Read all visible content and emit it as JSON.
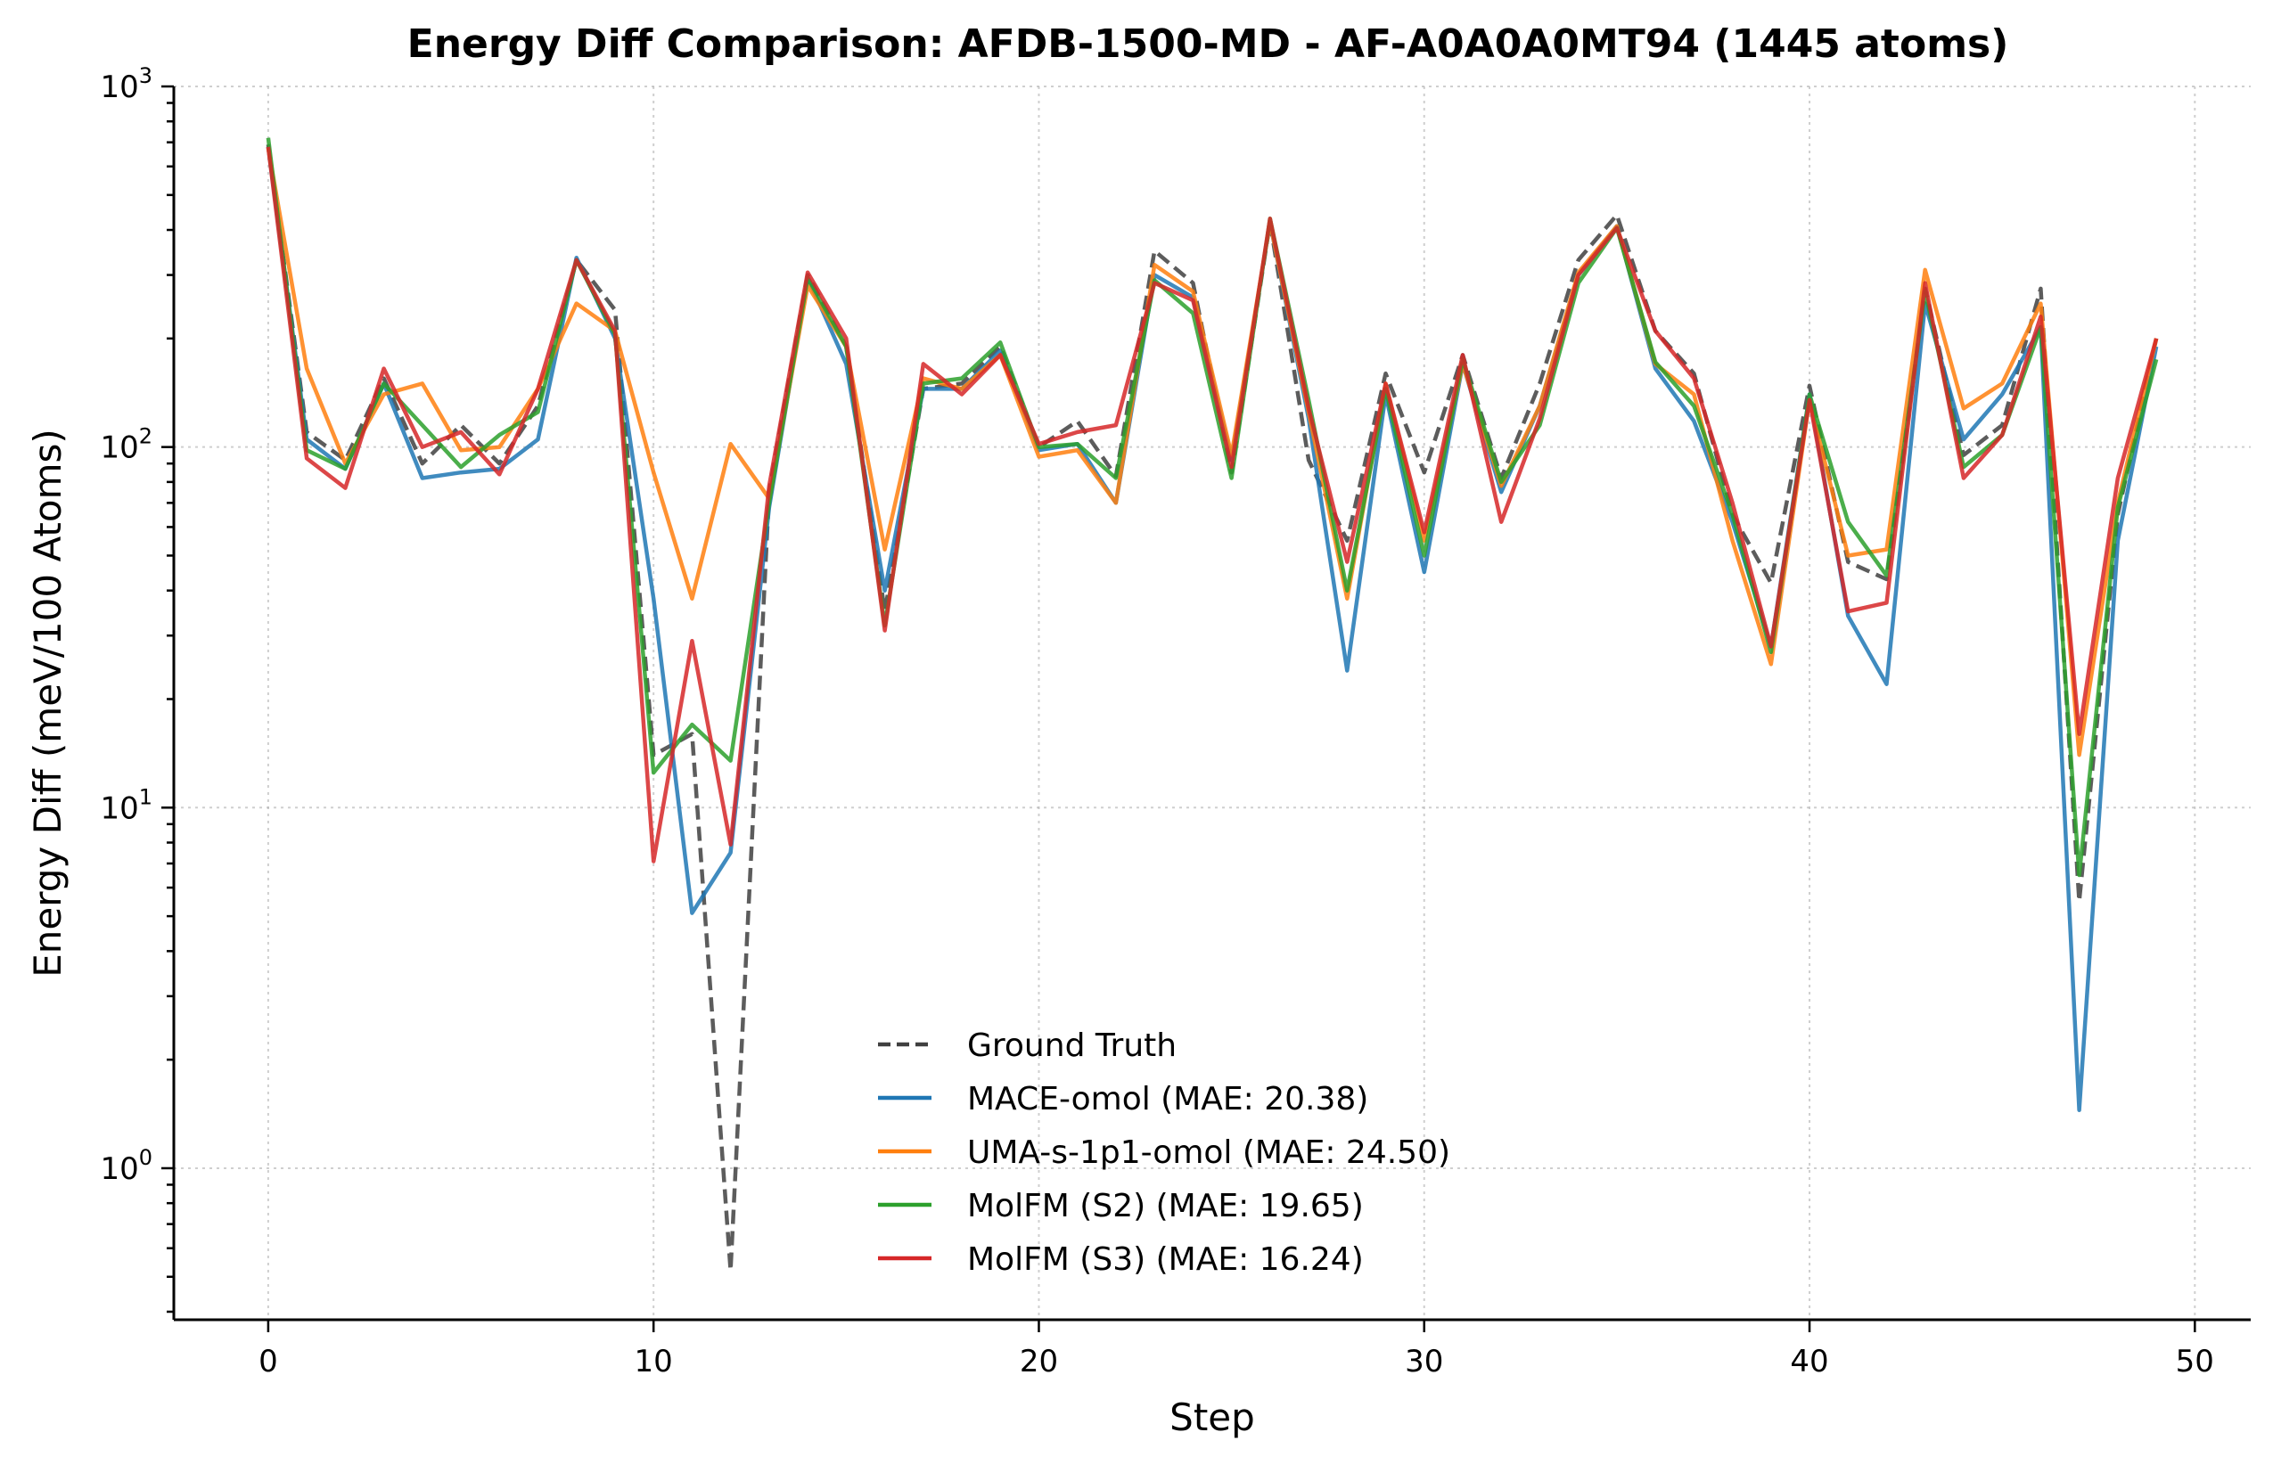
{
  "chart_data": {
    "type": "line",
    "title": "Energy Diff Comparison: AFDB-1500-MD - AF-A0A0A0MT94 (1445 atoms)",
    "xlabel": "Step",
    "ylabel": "Energy Diff (meV/100 Atoms)",
    "yscale": "log",
    "xlim": [
      -2.45,
      51.45
    ],
    "ylim": [
      0.38,
      1000
    ],
    "xticks": [
      0,
      10,
      20,
      30,
      40,
      50
    ],
    "xtick_labels": [
      "0",
      "10",
      "20",
      "30",
      "40",
      "50"
    ],
    "yticks": [
      1,
      10,
      100,
      1000
    ],
    "ytick_base": "10",
    "ytick_exponents": [
      "0",
      "1",
      "2",
      "3"
    ],
    "grid": true,
    "legend_position": "lower-center",
    "x": [
      0,
      1,
      2,
      3,
      4,
      5,
      6,
      7,
      8,
      9,
      10,
      11,
      12,
      13,
      14,
      15,
      16,
      17,
      18,
      19,
      20,
      21,
      22,
      23,
      24,
      25,
      26,
      27,
      28,
      29,
      30,
      31,
      32,
      33,
      34,
      35,
      36,
      37,
      38,
      39,
      40,
      41,
      42,
      43,
      44,
      45,
      46,
      47,
      48,
      49
    ],
    "series": [
      {
        "name": "Ground Truth",
        "color": "#404040",
        "dashed": true,
        "values": [
          690,
          110,
          92,
          155,
          90,
          115,
          90,
          130,
          330,
          240,
          14,
          16,
          0.52,
          75,
          300,
          190,
          35,
          145,
          150,
          190,
          100,
          118,
          83,
          350,
          285,
          85,
          420,
          92,
          55,
          160,
          85,
          180,
          82,
          150,
          330,
          440,
          210,
          160,
          65,
          42,
          148,
          48,
          43,
          275,
          95,
          115,
          275,
          5.5,
          65,
          200
        ]
      },
      {
        "name": "MACE-omol (MAE: 20.38)",
        "color": "#1f77b4",
        "dashed": false,
        "values": [
          680,
          105,
          87,
          150,
          82,
          85,
          87,
          105,
          335,
          200,
          38,
          5.1,
          7.5,
          68,
          295,
          170,
          40,
          145,
          145,
          185,
          98,
          102,
          70,
          300,
          260,
          92,
          420,
          120,
          24,
          140,
          45,
          170,
          75,
          130,
          300,
          410,
          165,
          118,
          62,
          28,
          140,
          34,
          22,
          250,
          105,
          140,
          215,
          1.45,
          55,
          190
        ]
      },
      {
        "name": "UMA-s-1p1-omol (MAE: 24.50)",
        "color": "#ff7f0e",
        "dashed": false,
        "values": [
          675,
          165,
          90,
          140,
          150,
          98,
          100,
          145,
          250,
          210,
          85,
          38,
          102,
          72,
          280,
          190,
          52,
          155,
          145,
          180,
          94,
          98,
          70,
          320,
          270,
          95,
          420,
          125,
          38,
          150,
          55,
          170,
          78,
          130,
          305,
          410,
          170,
          140,
          55,
          25,
          135,
          50,
          52,
          310,
          128,
          150,
          250,
          14,
          70,
          200
        ]
      },
      {
        "name": "MolFM (S2) (MAE: 19.65)",
        "color": "#2ca02c",
        "dashed": false,
        "values": [
          720,
          98,
          87,
          150,
          115,
          88,
          108,
          125,
          330,
          205,
          12.5,
          17,
          13.5,
          70,
          295,
          190,
          32,
          150,
          155,
          195,
          100,
          102,
          82,
          290,
          235,
          82,
          430,
          135,
          40,
          145,
          50,
          175,
          80,
          115,
          285,
          405,
          172,
          130,
          65,
          27,
          140,
          62,
          44,
          270,
          88,
          108,
          215,
          6.5,
          68,
          175
        ]
      },
      {
        "name": "MolFM (S3) (MAE: 16.24)",
        "color": "#d62728",
        "dashed": false,
        "values": [
          680,
          93,
          77,
          165,
          100,
          110,
          84,
          145,
          330,
          210,
          7.1,
          29,
          7.9,
          78,
          305,
          200,
          31,
          170,
          140,
          180,
          102,
          110,
          115,
          285,
          255,
          88,
          430,
          128,
          48,
          150,
          58,
          180,
          62,
          120,
          300,
          405,
          210,
          155,
          70,
          28,
          135,
          35,
          37,
          285,
          82,
          108,
          230,
          16,
          82,
          200
        ]
      }
    ]
  }
}
